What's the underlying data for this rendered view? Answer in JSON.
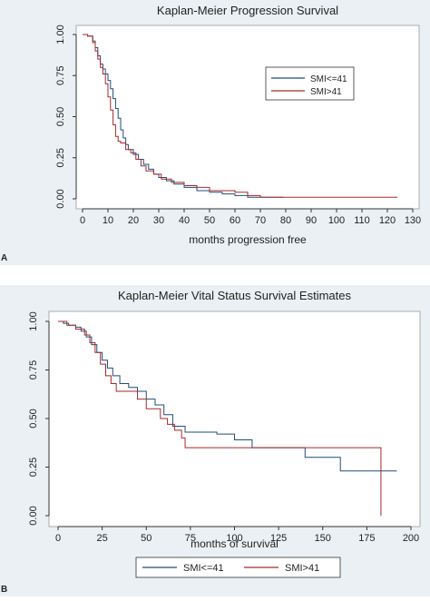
{
  "chart_data": [
    {
      "type": "line",
      "step": true,
      "title": "Kaplan-Meier Progression Survival",
      "x_label": "months  progression free",
      "panel_label": "A",
      "legend": "upper right",
      "xlim": [
        0,
        130
      ],
      "xticks": [
        0,
        10,
        20,
        30,
        40,
        50,
        60,
        70,
        80,
        90,
        100,
        110,
        120,
        130
      ],
      "ylim": [
        0,
        1
      ],
      "yticks": [
        {
          "value": 0,
          "label": "0.00"
        },
        {
          "value": 0.25,
          "label": "0.25"
        },
        {
          "value": 0.5,
          "label": "0.50"
        },
        {
          "value": 0.75,
          "label": "0.75"
        },
        {
          "value": 1,
          "label": "1.00"
        }
      ],
      "series": [
        {
          "name": "SMI<=41",
          "color": "#1f4e79",
          "x": [
            0,
            2,
            4,
            5,
            6,
            7,
            8,
            9,
            10,
            11,
            12,
            13,
            14,
            15,
            16,
            17,
            18,
            20,
            22,
            24,
            26,
            28,
            30,
            33,
            36,
            40,
            45,
            50,
            55,
            60,
            65,
            79
          ],
          "values": [
            1,
            0.99,
            0.96,
            0.92,
            0.87,
            0.82,
            0.79,
            0.76,
            0.72,
            0.67,
            0.61,
            0.55,
            0.49,
            0.42,
            0.37,
            0.33,
            0.3,
            0.27,
            0.24,
            0.21,
            0.18,
            0.15,
            0.13,
            0.11,
            0.09,
            0.07,
            0.05,
            0.04,
            0.03,
            0.02,
            0.01,
            0.01
          ]
        },
        {
          "name": "SMI>41",
          "color": "#a52a2a",
          "x": [
            0,
            2,
            4,
            5,
            6,
            7,
            8,
            9,
            10,
            11,
            12,
            13,
            14,
            15,
            17,
            19,
            21,
            23,
            25,
            28,
            31,
            35,
            40,
            45,
            50,
            60,
            65,
            70,
            124
          ],
          "values": [
            1,
            0.99,
            0.95,
            0.9,
            0.85,
            0.8,
            0.76,
            0.7,
            0.62,
            0.54,
            0.45,
            0.38,
            0.35,
            0.34,
            0.3,
            0.28,
            0.24,
            0.2,
            0.17,
            0.15,
            0.12,
            0.1,
            0.08,
            0.07,
            0.05,
            0.04,
            0.02,
            0.01,
            0.01
          ]
        }
      ]
    },
    {
      "type": "line",
      "step": true,
      "title": "Kaplan-Meier Vital Status Survival Estimates",
      "x_label": "months of survival",
      "panel_label": "B",
      "legend": "bottom",
      "xlim": [
        0,
        200
      ],
      "xticks": [
        0,
        25,
        50,
        75,
        100,
        125,
        150,
        175,
        200
      ],
      "ylim": [
        0,
        1
      ],
      "yticks": [
        {
          "value": 0,
          "label": "0.00"
        },
        {
          "value": 0.25,
          "label": "0.25"
        },
        {
          "value": 0.5,
          "label": "0.50"
        },
        {
          "value": 0.75,
          "label": "0.75"
        },
        {
          "value": 1,
          "label": "1.00"
        }
      ],
      "series": [
        {
          "name": "SMI<=41",
          "color": "#1f4e79",
          "x": [
            0,
            3,
            6,
            10,
            13,
            16,
            19,
            22,
            25,
            28,
            31,
            35,
            40,
            45,
            50,
            55,
            60,
            65,
            72,
            80,
            90,
            100,
            110,
            125,
            140,
            160,
            192
          ],
          "values": [
            1,
            0.99,
            0.98,
            0.97,
            0.95,
            0.92,
            0.88,
            0.84,
            0.8,
            0.76,
            0.72,
            0.68,
            0.66,
            0.64,
            0.6,
            0.57,
            0.52,
            0.46,
            0.43,
            0.43,
            0.42,
            0.39,
            0.35,
            0.35,
            0.3,
            0.23,
            0.23
          ]
        },
        {
          "name": "SMI>41",
          "color": "#a52a2a",
          "x": [
            0,
            5,
            10,
            15,
            18,
            21,
            24,
            27,
            30,
            33,
            36,
            45,
            50,
            58,
            62,
            66,
            70,
            72,
            100,
            140,
            183,
            183
          ],
          "values": [
            1,
            0.98,
            0.96,
            0.93,
            0.89,
            0.84,
            0.78,
            0.72,
            0.68,
            0.64,
            0.64,
            0.6,
            0.55,
            0.5,
            0.47,
            0.44,
            0.4,
            0.35,
            0.35,
            0.35,
            0.35,
            0
          ]
        }
      ]
    }
  ]
}
